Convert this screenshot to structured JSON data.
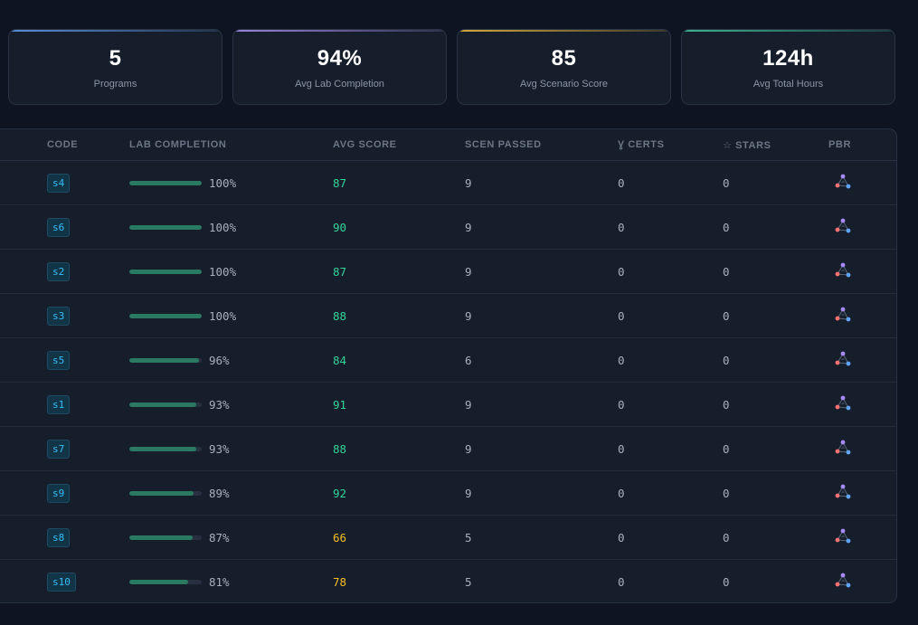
{
  "stats": [
    {
      "value": "5",
      "label": "Programs",
      "accent": "#5b8fd6"
    },
    {
      "value": "94%",
      "label": "Avg Lab Completion",
      "accent": "#9a85d9"
    },
    {
      "value": "85",
      "label": "Avg Scenario Score",
      "accent": "#d4a93a"
    },
    {
      "value": "124h",
      "label": "Avg Total Hours",
      "accent": "#3fb48f"
    }
  ],
  "table": {
    "headers": {
      "code": "CODE",
      "lab_completion": "LAB COMPLETION",
      "avg_score": "AVG SCORE",
      "scen_passed": "SCEN PASSED",
      "certs": "Ɣ CERTS",
      "stars": "☆ STARS",
      "pbr": "PBR"
    },
    "rows": [
      {
        "code": "s4",
        "lab": "100%",
        "lab_fraction": 1.0,
        "score": "87",
        "score_status": "good",
        "scen": "9",
        "certs": "0",
        "stars": "0",
        "pbr_icon": "pbr-network-icon"
      },
      {
        "code": "s6",
        "lab": "100%",
        "lab_fraction": 1.0,
        "score": "90",
        "score_status": "good",
        "scen": "9",
        "certs": "0",
        "stars": "0",
        "pbr_icon": "pbr-network-icon"
      },
      {
        "code": "s2",
        "lab": "100%",
        "lab_fraction": 1.0,
        "score": "87",
        "score_status": "good",
        "scen": "9",
        "certs": "0",
        "stars": "0",
        "pbr_icon": "pbr-network-icon"
      },
      {
        "code": "s3",
        "lab": "100%",
        "lab_fraction": 1.0,
        "score": "88",
        "score_status": "good",
        "scen": "9",
        "certs": "0",
        "stars": "0",
        "pbr_icon": "pbr-network-icon"
      },
      {
        "code": "s5",
        "lab": "96%",
        "lab_fraction": 0.96,
        "score": "84",
        "score_status": "good",
        "scen": "6",
        "certs": "0",
        "stars": "0",
        "pbr_icon": "pbr-network-icon"
      },
      {
        "code": "s1",
        "lab": "93%",
        "lab_fraction": 0.93,
        "score": "91",
        "score_status": "good",
        "scen": "9",
        "certs": "0",
        "stars": "0",
        "pbr_icon": "pbr-network-icon"
      },
      {
        "code": "s7",
        "lab": "93%",
        "lab_fraction": 0.93,
        "score": "88",
        "score_status": "good",
        "scen": "9",
        "certs": "0",
        "stars": "0",
        "pbr_icon": "pbr-network-icon"
      },
      {
        "code": "s9",
        "lab": "89%",
        "lab_fraction": 0.89,
        "score": "92",
        "score_status": "good",
        "scen": "9",
        "certs": "0",
        "stars": "0",
        "pbr_icon": "pbr-network-icon"
      },
      {
        "code": "s8",
        "lab": "87%",
        "lab_fraction": 0.87,
        "score": "66",
        "score_status": "warn",
        "scen": "5",
        "certs": "0",
        "stars": "0",
        "pbr_icon": "pbr-network-icon"
      },
      {
        "code": "s10",
        "lab": "81%",
        "lab_fraction": 0.81,
        "score": "78",
        "score_status": "warn",
        "scen": "5",
        "certs": "0",
        "stars": "0",
        "pbr_icon": "pbr-network-icon"
      }
    ]
  },
  "colors": {
    "score_good": "#34d399",
    "score_warn": "#fbbf24",
    "code_badge": "#38bdf8",
    "bar_fill": "#2a7a62"
  }
}
